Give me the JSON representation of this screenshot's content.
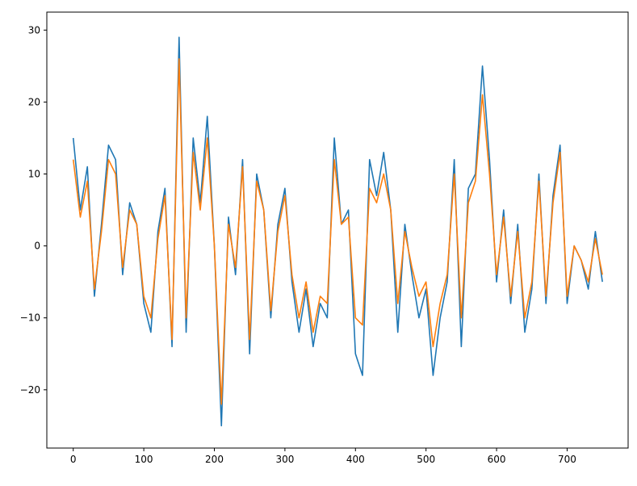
{
  "chart_data": {
    "type": "line",
    "x": [
      0,
      10,
      20,
      30,
      40,
      50,
      60,
      70,
      80,
      90,
      100,
      110,
      120,
      130,
      140,
      150,
      160,
      170,
      180,
      190,
      200,
      210,
      220,
      230,
      240,
      250,
      260,
      270,
      280,
      290,
      300,
      310,
      320,
      330,
      340,
      350,
      360,
      370,
      380,
      390,
      400,
      410,
      420,
      430,
      440,
      450,
      460,
      470,
      480,
      490,
      500,
      510,
      520,
      530,
      540,
      550,
      560,
      570,
      580,
      590,
      600,
      610,
      620,
      630,
      640,
      650,
      660,
      670,
      680,
      690,
      700,
      710,
      720,
      730,
      740,
      750
    ],
    "series": [
      {
        "color": "#1f77b4",
        "values": [
          15,
          5,
          11,
          -7,
          3,
          14,
          12,
          -4,
          6,
          3,
          -8,
          -12,
          2,
          8,
          -14,
          29,
          -12,
          15,
          6,
          18,
          0,
          -25,
          4,
          -4,
          12,
          -15,
          10,
          5,
          -10,
          3,
          8,
          -5,
          -12,
          -6,
          -14,
          -8,
          -10,
          15,
          3,
          5,
          -15,
          -18,
          12,
          7,
          13,
          5,
          -12,
          3,
          -4,
          -10,
          -6,
          -18,
          -10,
          -5,
          12,
          -14,
          8,
          10,
          25,
          12,
          -5,
          5,
          -8,
          3,
          -12,
          -6,
          10,
          -8,
          7,
          14,
          -8,
          0,
          -2,
          -6,
          2,
          -5
        ]
      },
      {
        "color": "#ff7f0e",
        "values": [
          12,
          4,
          9,
          -6,
          2,
          12,
          10,
          -3,
          5,
          3,
          -7,
          -10,
          1,
          7,
          -13,
          26,
          -10,
          13,
          5,
          15,
          0,
          -22,
          3,
          -3,
          11,
          -13,
          9,
          5,
          -9,
          2,
          7,
          -4,
          -10,
          -5,
          -12,
          -7,
          -8,
          12,
          3,
          4,
          -10,
          -11,
          8,
          6,
          10,
          5,
          -8,
          2,
          -3,
          -7,
          -5,
          -14,
          -8,
          -4,
          10,
          -10,
          6,
          9,
          21,
          10,
          -4,
          4,
          -7,
          2,
          -10,
          -5,
          9,
          -7,
          6,
          13,
          -7,
          0,
          -2,
          -5,
          1,
          -4
        ]
      }
    ],
    "xlim": [
      -37.45,
      786.45
    ],
    "ylim": [
      -28.1,
      32.5
    ],
    "xticks": [
      0,
      100,
      200,
      300,
      400,
      500,
      600,
      700
    ],
    "yticks": [
      {
        "value": -20,
        "label": "−20"
      },
      {
        "value": -10,
        "label": "−10"
      },
      0,
      10,
      20,
      30
    ]
  }
}
